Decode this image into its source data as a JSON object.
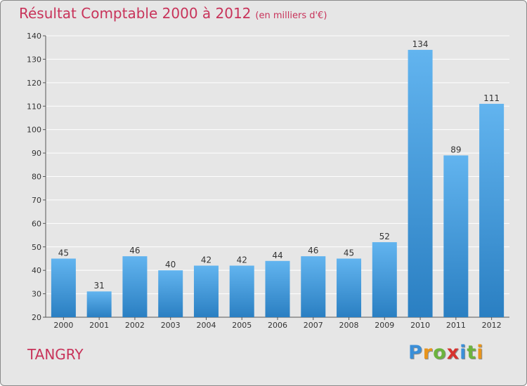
{
  "title": "Résultat Comptable 2000 à 2012",
  "subtitle": "(en milliers d'€)",
  "commune": "TANGRY",
  "logo": {
    "letters": [
      "P",
      "r",
      "o",
      "x",
      "i",
      "t",
      "i"
    ],
    "colors": [
      "#3a8fd8",
      "#e8941b",
      "#6cb33e",
      "#d6322e",
      "#3a8fd8",
      "#6cb33e",
      "#e8941b"
    ]
  },
  "colors": {
    "bar_light": "#62b4ef",
    "bar_dark": "#2a7fc2",
    "title": "#c8335a",
    "grid": "#ffffff"
  },
  "chart_data": {
    "type": "bar",
    "title": "Résultat Comptable 2000 à 2012",
    "xlabel": "",
    "ylabel": "",
    "categories": [
      "2000",
      "2001",
      "2002",
      "2003",
      "2004",
      "2005",
      "2006",
      "2007",
      "2008",
      "2009",
      "2010",
      "2011",
      "2012"
    ],
    "values": [
      45,
      31,
      46,
      40,
      42,
      42,
      44,
      46,
      45,
      52,
      134,
      89,
      111
    ],
    "ylim": [
      20,
      140
    ],
    "yticks": [
      20,
      30,
      40,
      50,
      60,
      70,
      80,
      90,
      100,
      110,
      120,
      130,
      140
    ],
    "grid": true,
    "legend": "none"
  }
}
